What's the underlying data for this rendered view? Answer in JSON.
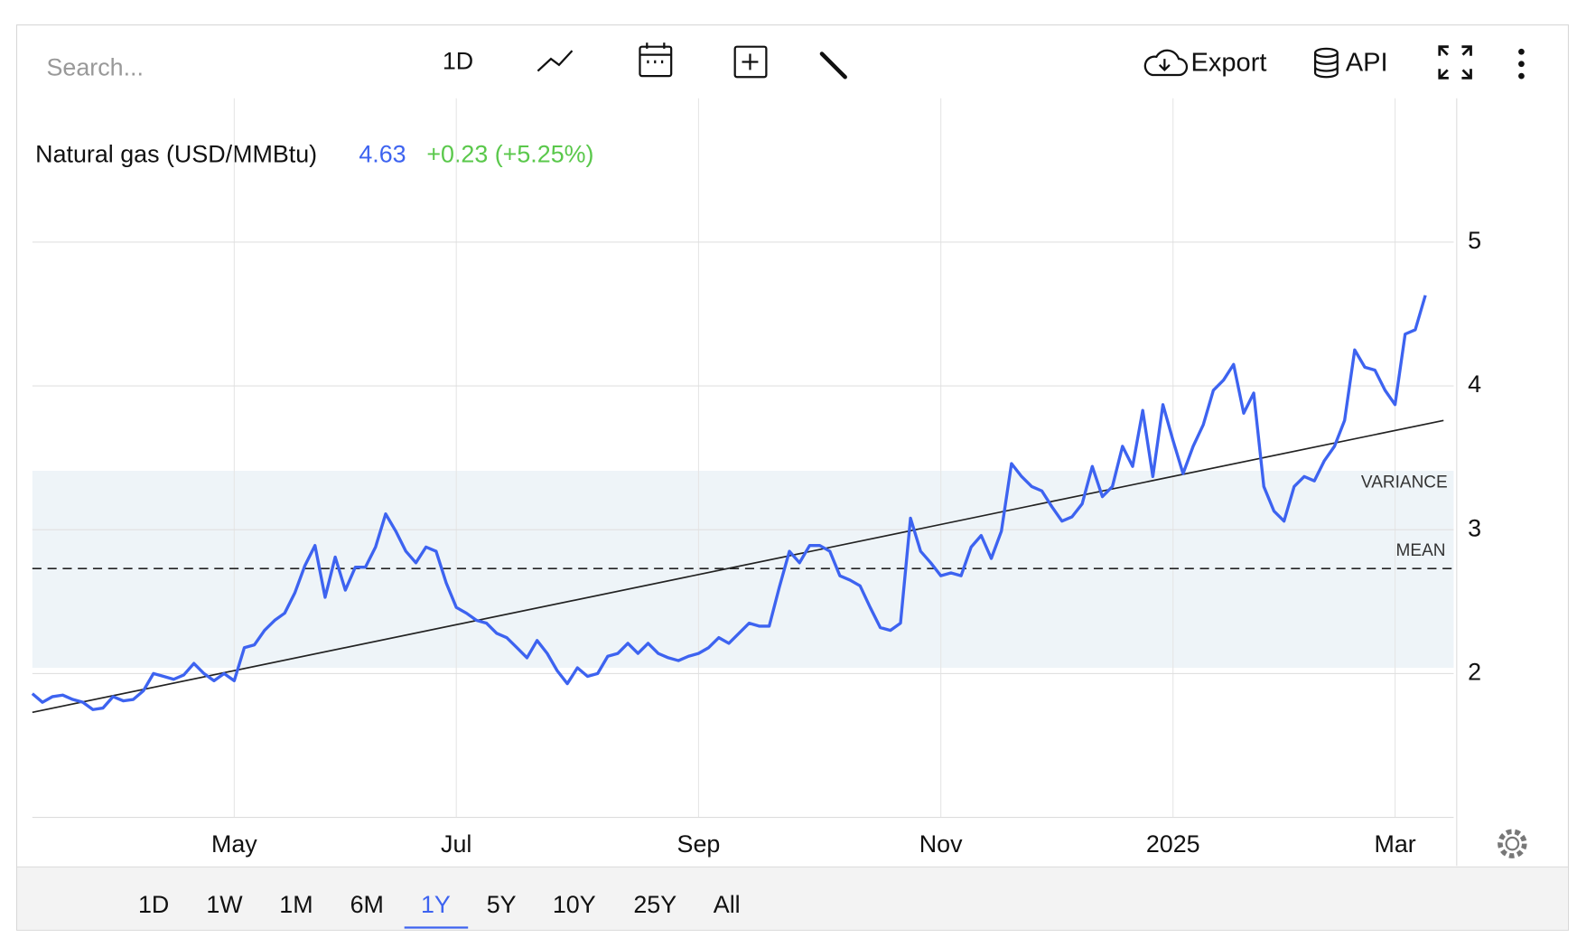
{
  "toolbar": {
    "search": "Search...",
    "interval": "1D",
    "export": "Export",
    "api": "API"
  },
  "ranges": {
    "options": [
      "1D",
      "1W",
      "1M",
      "6M",
      "1Y",
      "5Y",
      "10Y",
      "25Y",
      "All"
    ],
    "active": "1Y"
  },
  "chart_data": {
    "type": "line",
    "series": [
      {
        "name": "Natural gas (USD/MMBtu)",
        "color": "#3d63f0",
        "values": [
          1.86,
          1.8,
          1.84,
          1.85,
          1.82,
          1.8,
          1.75,
          1.76,
          1.84,
          1.81,
          1.82,
          1.88,
          2.0,
          1.98,
          1.96,
          1.99,
          2.07,
          2.0,
          1.95,
          2.0,
          1.95,
          2.18,
          2.2,
          2.3,
          2.37,
          2.42,
          2.56,
          2.75,
          2.89,
          2.53,
          2.81,
          2.58,
          2.74,
          2.74,
          2.88,
          3.11,
          2.99,
          2.85,
          2.77,
          2.88,
          2.85,
          2.63,
          2.46,
          2.42,
          2.37,
          2.35,
          2.28,
          2.25,
          2.18,
          2.11,
          2.23,
          2.14,
          2.02,
          1.93,
          2.04,
          1.98,
          2.0,
          2.12,
          2.14,
          2.21,
          2.14,
          2.21,
          2.14,
          2.11,
          2.09,
          2.12,
          2.14,
          2.18,
          2.25,
          2.21,
          2.28,
          2.35,
          2.33,
          2.33,
          2.6,
          2.85,
          2.77,
          2.89,
          2.89,
          2.85,
          2.68,
          2.65,
          2.61,
          2.46,
          2.32,
          2.3,
          2.35,
          3.08,
          2.85,
          2.77,
          2.68,
          2.7,
          2.68,
          2.88,
          2.96,
          2.8,
          2.99,
          3.46,
          3.37,
          3.3,
          3.27,
          3.16,
          3.06,
          3.09,
          3.18,
          3.44,
          3.23,
          3.3,
          3.58,
          3.44,
          3.83,
          3.37,
          3.87,
          3.62,
          3.39,
          3.58,
          3.73,
          3.97,
          4.04,
          4.15,
          3.81,
          3.95,
          3.3,
          3.13,
          3.06,
          3.3,
          3.37,
          3.34,
          3.48,
          3.58,
          3.76,
          4.25,
          4.13,
          4.11,
          3.97,
          3.87,
          4.36,
          4.39,
          4.63
        ]
      }
    ],
    "categories": [
      null,
      null,
      null,
      null,
      null,
      null,
      null,
      null,
      null,
      null,
      null,
      null,
      null,
      null,
      null,
      null,
      null,
      null,
      null,
      null,
      "May",
      null,
      null,
      null,
      null,
      null,
      null,
      null,
      null,
      null,
      null,
      null,
      null,
      null,
      null,
      null,
      null,
      null,
      null,
      null,
      null,
      null,
      "Jul",
      null,
      null,
      null,
      null,
      null,
      null,
      null,
      null,
      null,
      null,
      null,
      null,
      null,
      null,
      null,
      null,
      null,
      null,
      null,
      null,
      null,
      null,
      null,
      "Sep",
      null,
      null,
      null,
      null,
      null,
      null,
      null,
      null,
      null,
      null,
      null,
      null,
      null,
      null,
      null,
      null,
      null,
      null,
      null,
      null,
      null,
      null,
      null,
      "Nov",
      null,
      null,
      null,
      null,
      null,
      null,
      null,
      null,
      null,
      null,
      null,
      null,
      null,
      null,
      null,
      null,
      null,
      null,
      null,
      null,
      null,
      null,
      "2025",
      null,
      null,
      null,
      null,
      null,
      null,
      null,
      null,
      null,
      null,
      null,
      null,
      null,
      null,
      null,
      null,
      null,
      null,
      null,
      null,
      null,
      "Mar",
      null,
      null,
      null
    ],
    "price": "4.63",
    "change": "+0.23 (+5.25%)",
    "ylim": [
      1,
      6
    ],
    "yticks": [
      2,
      3,
      4,
      5
    ],
    "grid": true,
    "trend": {
      "start": 1.73,
      "end": 3.76
    },
    "mean": {
      "label": "MEAN",
      "value": 2.73
    },
    "variance": {
      "label": "VARIANCE",
      "low": 2.04,
      "high": 3.41
    }
  }
}
